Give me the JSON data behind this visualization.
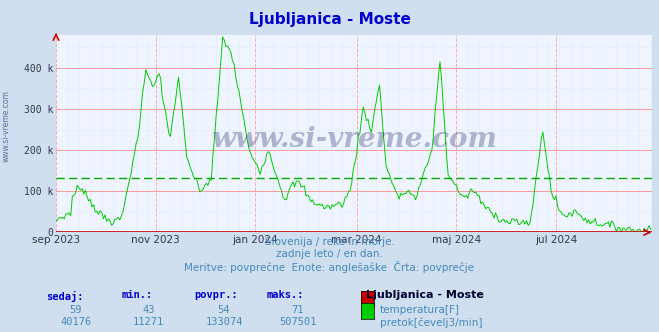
{
  "title": "Ljubljanica - Moste",
  "title_color": "#0000cc",
  "bg_color": "#d0dff0",
  "plot_bg_color": "#f0f4ff",
  "grid_color_h": "#ff9999",
  "grid_color_v": "#ffaaaa",
  "grid_minor_color": "#ddeeff",
  "line_color_flow": "#00cc00",
  "avg_line_color": "#00aa00",
  "avg_line_value": 133074,
  "ylim": [
    0,
    480000
  ],
  "yticks": [
    0,
    100000,
    200000,
    300000,
    400000
  ],
  "ytick_labels": [
    "0",
    "100 k",
    "200 k",
    "300 k",
    "400 k"
  ],
  "x_tick_positions": [
    0,
    61,
    122,
    184,
    245,
    306
  ],
  "x_tick_labels": [
    "sep 2023",
    "nov 2023",
    "jan 2024",
    "mar 2024",
    "maj 2024",
    "jul 2024"
  ],
  "subtitle1": "Slovenija / reke in morje.",
  "subtitle2": "zadnje leto / en dan.",
  "subtitle3": "Meritve: povprečne  Enote: anglešaške  Črta: povprečje",
  "subtitle_color": "#4488bb",
  "watermark": "www.si-vreme.com",
  "watermark_color": "#102060",
  "legend_title": "Ljubljanica - Moste",
  "table_headers": [
    "sedaj:",
    "min.:",
    "povpr.:",
    "maks.:"
  ],
  "table_header_color": "#0000cc",
  "table_temp": [
    59,
    43,
    54,
    71
  ],
  "table_flow": [
    40176,
    11271,
    133074,
    507501
  ],
  "table_color": "#4488bb",
  "temp_label": "temperatura[F]",
  "flow_label": "pretok[čevelj3/min]",
  "temp_box_color": "#cc0000",
  "flow_box_color": "#00cc00",
  "figsize": [
    6.59,
    3.32
  ],
  "dpi": 100
}
